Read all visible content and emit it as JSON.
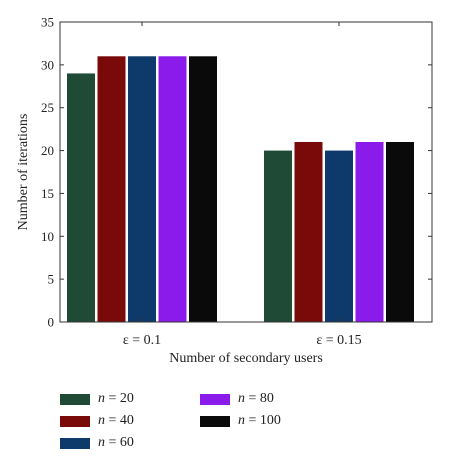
{
  "chart_data": {
    "type": "bar",
    "categories": [
      "ε = 0.1",
      "ε = 0.15"
    ],
    "series": [
      {
        "name": "n = 20",
        "symbol": "n",
        "label_rest": " = 20",
        "color": "#1f4a35",
        "values": [
          29,
          20
        ]
      },
      {
        "name": "n = 40",
        "symbol": "n",
        "label_rest": " = 40",
        "color": "#7a0a0a",
        "values": [
          31,
          21
        ]
      },
      {
        "name": "n = 60",
        "symbol": "n",
        "label_rest": " = 60",
        "color": "#0d3a6b",
        "values": [
          31,
          20
        ]
      },
      {
        "name": "n = 80",
        "symbol": "n",
        "label_rest": " = 80",
        "color": "#8a1bea",
        "values": [
          31,
          21
        ]
      },
      {
        "name": "n = 100",
        "symbol": "n",
        "label_rest": " = 100",
        "color": "#0a0a0a",
        "values": [
          31,
          21
        ]
      }
    ],
    "xlabel": "Number of secondary users",
    "ylabel": "Number of iterations",
    "ylim": [
      0,
      35
    ],
    "yticks": [
      0,
      5,
      10,
      15,
      20,
      25,
      30,
      35
    ],
    "grid": false,
    "legend_position": "bottom"
  }
}
